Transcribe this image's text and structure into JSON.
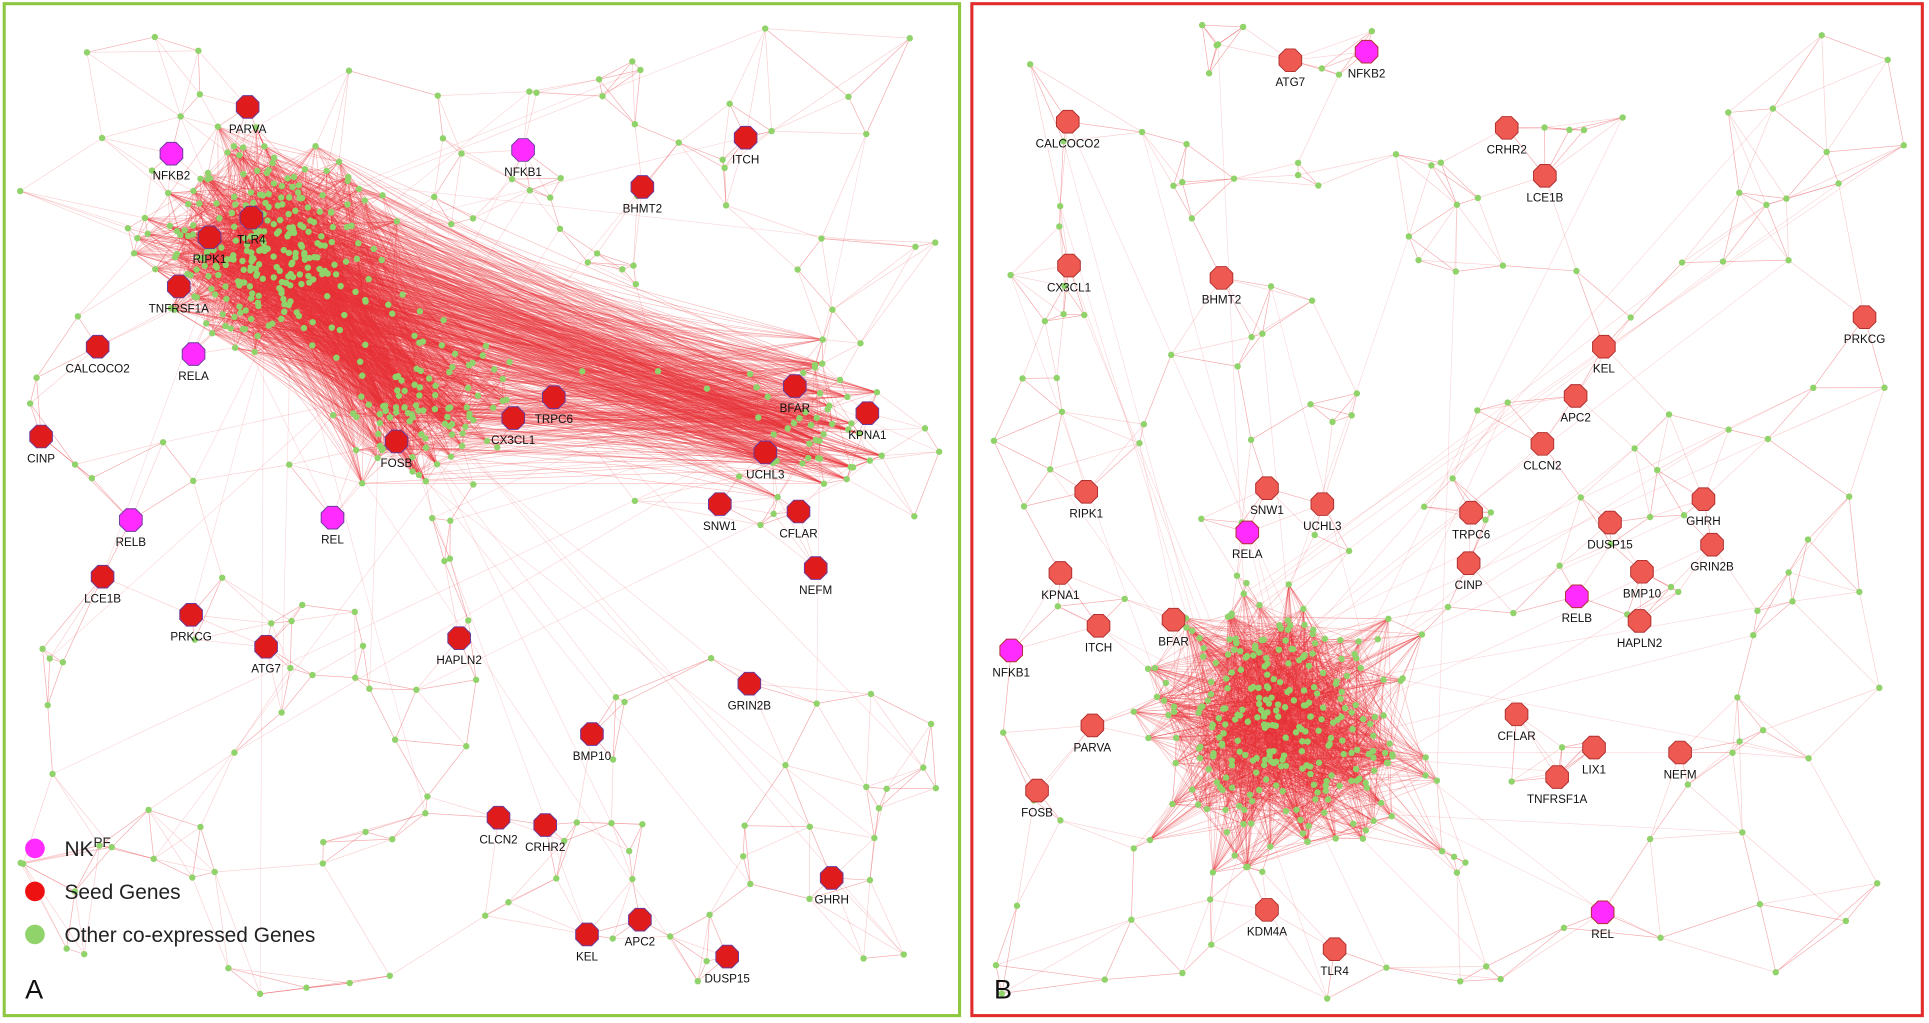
{
  "panels": [
    {
      "label": "A",
      "nodes": [
        {
          "label": "PARVA",
          "kind": "seed"
        },
        {
          "label": "NFKB2",
          "kind": "nk"
        },
        {
          "label": "NFKB1",
          "kind": "nk"
        },
        {
          "label": "ITCH",
          "kind": "seed"
        },
        {
          "label": "BHMT2",
          "kind": "seed"
        },
        {
          "label": "RIPK1",
          "kind": "seed"
        },
        {
          "label": "TLR4",
          "kind": "seed"
        },
        {
          "label": "TNFRSF1A",
          "kind": "seed"
        },
        {
          "label": "CALCOCO2",
          "kind": "seed"
        },
        {
          "label": "RELA",
          "kind": "nk"
        },
        {
          "label": "CINP",
          "kind": "seed"
        },
        {
          "label": "TRPC6",
          "kind": "seed"
        },
        {
          "label": "CX3CL1",
          "kind": "seed"
        },
        {
          "label": "FOSB",
          "kind": "seed"
        },
        {
          "label": "BFAR",
          "kind": "seed"
        },
        {
          "label": "KPNA1",
          "kind": "seed"
        },
        {
          "label": "UCHL3",
          "kind": "seed"
        },
        {
          "label": "SNW1",
          "kind": "seed"
        },
        {
          "label": "CFLAR",
          "kind": "seed"
        },
        {
          "label": "NEFM",
          "kind": "seed"
        },
        {
          "label": "RELB",
          "kind": "nk"
        },
        {
          "label": "REL",
          "kind": "nk"
        },
        {
          "label": "LCE1B",
          "kind": "seed"
        },
        {
          "label": "PRKCG",
          "kind": "seed"
        },
        {
          "label": "ATG7",
          "kind": "seed"
        },
        {
          "label": "HAPLN2",
          "kind": "seed"
        },
        {
          "label": "GRIN2B",
          "kind": "seed"
        },
        {
          "label": "BMP10",
          "kind": "seed"
        },
        {
          "label": "CLCN2",
          "kind": "seed"
        },
        {
          "label": "CRHR2",
          "kind": "seed"
        },
        {
          "label": "GHRH",
          "kind": "seed"
        },
        {
          "label": "APC2",
          "kind": "seed"
        },
        {
          "label": "KEL",
          "kind": "seed"
        },
        {
          "label": "DUSP15",
          "kind": "seed"
        }
      ]
    },
    {
      "label": "B",
      "nodes": [
        {
          "label": "ATG7",
          "kind": "seed"
        },
        {
          "label": "NFKB2",
          "kind": "nk"
        },
        {
          "label": "CALCOCO2",
          "kind": "seed"
        },
        {
          "label": "CRHR2",
          "kind": "seed"
        },
        {
          "label": "LCE1B",
          "kind": "seed"
        },
        {
          "label": "CX3CL1",
          "kind": "seed"
        },
        {
          "label": "BHMT2",
          "kind": "seed"
        },
        {
          "label": "PRKCG",
          "kind": "seed"
        },
        {
          "label": "KEL",
          "kind": "seed"
        },
        {
          "label": "APC2",
          "kind": "seed"
        },
        {
          "label": "CLCN2",
          "kind": "seed"
        },
        {
          "label": "RIPK1",
          "kind": "seed"
        },
        {
          "label": "SNW1",
          "kind": "seed"
        },
        {
          "label": "UCHL3",
          "kind": "seed"
        },
        {
          "label": "RELA",
          "kind": "nk"
        },
        {
          "label": "TRPC6",
          "kind": "seed"
        },
        {
          "label": "DUSP15",
          "kind": "seed"
        },
        {
          "label": "GHRH",
          "kind": "seed"
        },
        {
          "label": "GRIN2B",
          "kind": "seed"
        },
        {
          "label": "CINP",
          "kind": "seed"
        },
        {
          "label": "KPNA1",
          "kind": "seed"
        },
        {
          "label": "BMP10",
          "kind": "seed"
        },
        {
          "label": "RELB",
          "kind": "nk"
        },
        {
          "label": "ITCH",
          "kind": "seed"
        },
        {
          "label": "BFAR",
          "kind": "seed"
        },
        {
          "label": "HAPLN2",
          "kind": "seed"
        },
        {
          "label": "NFKB1",
          "kind": "nk"
        },
        {
          "label": "CFLAR",
          "kind": "seed"
        },
        {
          "label": "PARVA",
          "kind": "seed"
        },
        {
          "label": "LIX1",
          "kind": "seed"
        },
        {
          "label": "NEFM",
          "kind": "seed"
        },
        {
          "label": "TNFRSF1A",
          "kind": "seed"
        },
        {
          "label": "FOSB",
          "kind": "seed"
        },
        {
          "label": "KDM4A",
          "kind": "seed"
        },
        {
          "label": "REL",
          "kind": "nk"
        },
        {
          "label": "TLR4",
          "kind": "seed"
        }
      ]
    }
  ],
  "legend": [
    {
      "text": "NK",
      "sup": "PF"
    },
    {
      "text": "Seed Genes"
    },
    {
      "text": "Other co-expressed Genes"
    }
  ]
}
